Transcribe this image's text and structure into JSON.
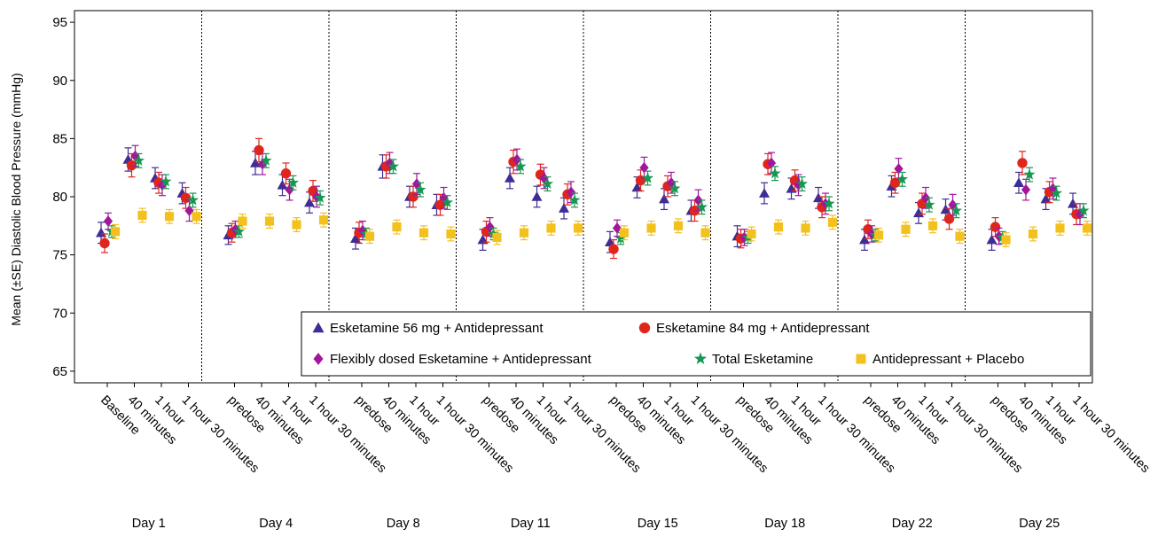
{
  "chart_data": {
    "type": "scatter",
    "ylabel": "Mean (±SE) Diastolic Blood Pressure (mmHg)",
    "ylim": [
      64,
      96
    ],
    "yticks": [
      65,
      70,
      75,
      80,
      85,
      90,
      95
    ],
    "grid": false,
    "legend_position": "bottom-right",
    "days": [
      {
        "label": "Day 1",
        "timepoints": [
          "Baseline",
          "40 minutes",
          "1 hour",
          "1 hour 30 minutes"
        ]
      },
      {
        "label": "Day 4",
        "timepoints": [
          "predose",
          "40 minutes",
          "1 hour",
          "1 hour 30 minutes"
        ]
      },
      {
        "label": "Day 8",
        "timepoints": [
          "predose",
          "40 minutes",
          "1 hour",
          "1 hour 30 minutes"
        ]
      },
      {
        "label": "Day 11",
        "timepoints": [
          "predose",
          "40 minutes",
          "1 hour",
          "1 hour 30 minutes"
        ]
      },
      {
        "label": "Day 15",
        "timepoints": [
          "predose",
          "40 minutes",
          "1 hour",
          "1 hour 30 minutes"
        ]
      },
      {
        "label": "Day 18",
        "timepoints": [
          "predose",
          "40 minutes",
          "1 hour",
          "1 hour 30 minutes"
        ]
      },
      {
        "label": "Day 22",
        "timepoints": [
          "predose",
          "40 minutes",
          "1 hour",
          "1 hour 30 minutes"
        ]
      },
      {
        "label": "Day 25",
        "timepoints": [
          "predose",
          "40 minutes",
          "1 hour",
          "1 hour 30 minutes"
        ]
      }
    ],
    "series": [
      {
        "name": "Esketamine 56 mg + Antidepressant",
        "marker": "triangle",
        "color": "#3f2d96",
        "values": [
          76.9,
          83.2,
          81.6,
          80.3,
          76.7,
          82.9,
          81.0,
          79.5,
          76.4,
          82.6,
          80.0,
          79.3,
          76.3,
          81.6,
          80.0,
          79.0,
          76.1,
          80.8,
          79.8,
          78.8,
          76.6,
          80.3,
          80.7,
          79.9,
          76.3,
          80.9,
          78.6,
          78.9,
          76.3,
          81.2,
          79.8,
          79.4
        ],
        "errors": [
          0.9,
          1.0,
          0.9,
          0.9,
          0.8,
          1.0,
          0.9,
          0.9,
          0.9,
          1.0,
          0.9,
          0.9,
          0.9,
          0.9,
          0.9,
          0.9,
          0.9,
          0.9,
          0.9,
          0.9,
          0.9,
          0.9,
          0.9,
          0.9,
          0.9,
          0.9,
          0.9,
          0.9,
          0.9,
          0.9,
          0.9,
          0.9
        ]
      },
      {
        "name": "Esketamine 84 mg + Antidepressant",
        "marker": "circle",
        "color": "#e0261c",
        "values": [
          76.0,
          82.7,
          81.2,
          79.9,
          76.9,
          84.0,
          82.0,
          80.5,
          76.9,
          82.6,
          80.0,
          79.3,
          77.0,
          83.0,
          81.9,
          80.2,
          75.5,
          81.4,
          80.9,
          78.8,
          76.4,
          82.8,
          81.4,
          79.1,
          77.2,
          81.2,
          79.4,
          78.1,
          77.4,
          82.9,
          80.4,
          78.5
        ],
        "errors": [
          0.8,
          1.0,
          0.9,
          0.9,
          0.8,
          1.0,
          0.9,
          0.9,
          0.9,
          1.0,
          0.9,
          0.9,
          0.9,
          1.0,
          0.9,
          0.9,
          0.8,
          0.9,
          0.9,
          0.9,
          0.8,
          0.9,
          0.9,
          0.9,
          0.8,
          0.9,
          0.9,
          0.9,
          0.8,
          1.0,
          0.9,
          0.9
        ]
      },
      {
        "name": "Flexibly dosed Esketamine + Antidepressant",
        "marker": "diamond",
        "color": "#a3169c",
        "values": [
          77.9,
          83.5,
          81.0,
          78.8,
          77.2,
          82.8,
          80.6,
          80.0,
          77.1,
          82.9,
          81.1,
          79.9,
          77.4,
          83.2,
          81.6,
          80.4,
          77.3,
          82.5,
          81.2,
          79.7,
          76.5,
          82.9,
          81.0,
          79.4,
          76.8,
          82.4,
          79.9,
          79.3,
          76.6,
          80.6,
          80.7,
          78.5
        ],
        "errors": [
          0.7,
          0.9,
          0.9,
          0.9,
          0.7,
          0.9,
          0.9,
          0.9,
          0.8,
          0.9,
          0.9,
          0.9,
          0.8,
          0.9,
          0.9,
          0.9,
          0.7,
          0.9,
          0.9,
          0.9,
          0.7,
          0.9,
          0.9,
          0.9,
          0.7,
          0.9,
          0.9,
          0.9,
          0.7,
          0.9,
          0.9,
          0.9
        ]
      },
      {
        "name": "Total Esketamine",
        "marker": "star",
        "color": "#159850",
        "values": [
          77.0,
          83.1,
          81.3,
          79.7,
          77.0,
          83.1,
          81.2,
          79.9,
          76.8,
          82.6,
          80.6,
          79.5,
          76.8,
          82.6,
          81.1,
          79.7,
          76.4,
          81.6,
          80.7,
          79.1,
          76.5,
          82.0,
          81.1,
          79.4,
          76.7,
          81.5,
          79.3,
          78.8,
          76.5,
          81.9,
          80.3,
          78.8
        ],
        "errors": [
          0.5,
          0.6,
          0.6,
          0.6,
          0.5,
          0.6,
          0.6,
          0.6,
          0.5,
          0.6,
          0.6,
          0.6,
          0.5,
          0.6,
          0.6,
          0.6,
          0.5,
          0.6,
          0.6,
          0.6,
          0.5,
          0.6,
          0.6,
          0.6,
          0.5,
          0.6,
          0.6,
          0.6,
          0.5,
          0.6,
          0.6,
          0.6
        ]
      },
      {
        "name": "Antidepressant + Placebo",
        "marker": "square",
        "color": "#f3c11e",
        "values": [
          77.0,
          78.4,
          78.3,
          78.3,
          77.9,
          77.9,
          77.6,
          78.0,
          76.6,
          77.4,
          76.9,
          76.8,
          76.5,
          76.9,
          77.3,
          77.3,
          76.9,
          77.3,
          77.5,
          76.9,
          76.8,
          77.4,
          77.3,
          77.8,
          76.7,
          77.2,
          77.5,
          76.6,
          76.3,
          76.8,
          77.3,
          77.3
        ],
        "errors": [
          0.6,
          0.6,
          0.6,
          0.6,
          0.6,
          0.6,
          0.6,
          0.6,
          0.6,
          0.6,
          0.6,
          0.6,
          0.6,
          0.6,
          0.6,
          0.6,
          0.6,
          0.6,
          0.6,
          0.6,
          0.6,
          0.6,
          0.6,
          0.6,
          0.6,
          0.6,
          0.6,
          0.6,
          0.6,
          0.6,
          0.6,
          0.6
        ]
      }
    ]
  }
}
